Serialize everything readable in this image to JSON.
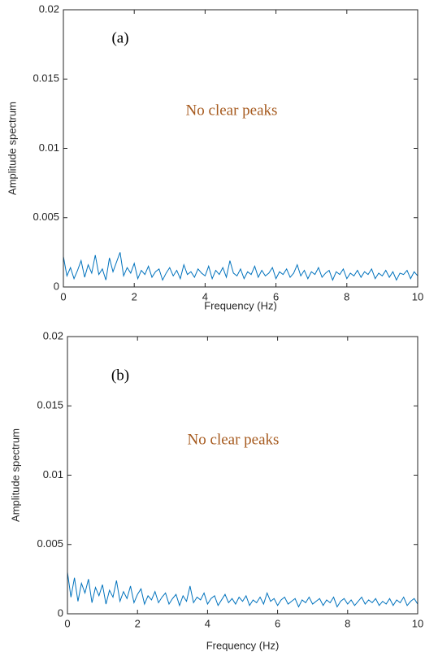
{
  "chart_data": [
    {
      "type": "line",
      "panel_label": "(a)",
      "note": "No clear peaks",
      "note_color": "#a65a1e",
      "xlabel": "Frequency (Hz)",
      "ylabel": "Amplitude spectrum",
      "xlim": [
        0,
        10
      ],
      "xticks": [
        0,
        2,
        4,
        6,
        8,
        10
      ],
      "ylim": [
        0,
        0.02
      ],
      "yticks": [
        0,
        0.005,
        0.01,
        0.015,
        0.02
      ],
      "color": "#0072bd",
      "x": [
        0,
        0.1,
        0.2,
        0.3,
        0.4,
        0.5,
        0.6,
        0.7,
        0.8,
        0.9,
        1,
        1.1,
        1.2,
        1.3,
        1.4,
        1.5,
        1.6,
        1.7,
        1.8,
        1.9,
        2,
        2.1,
        2.2,
        2.3,
        2.4,
        2.5,
        2.6,
        2.7,
        2.8,
        2.9,
        3,
        3.1,
        3.2,
        3.3,
        3.4,
        3.5,
        3.6,
        3.7,
        3.8,
        3.9,
        4,
        4.1,
        4.2,
        4.3,
        4.4,
        4.5,
        4.6,
        4.7,
        4.8,
        4.9,
        5,
        5.1,
        5.2,
        5.3,
        5.4,
        5.5,
        5.6,
        5.7,
        5.8,
        5.9,
        6,
        6.1,
        6.2,
        6.3,
        6.4,
        6.5,
        6.6,
        6.7,
        6.8,
        6.9,
        7,
        7.1,
        7.2,
        7.3,
        7.4,
        7.5,
        7.6,
        7.7,
        7.8,
        7.9,
        8,
        8.1,
        8.2,
        8.3,
        8.4,
        8.5,
        8.6,
        8.7,
        8.8,
        8.9,
        9,
        9.1,
        9.2,
        9.3,
        9.4,
        9.5,
        9.6,
        9.7,
        9.8,
        9.9,
        10
      ],
      "values": [
        0.0022,
        0.0008,
        0.0014,
        0.0006,
        0.0012,
        0.0019,
        0.0007,
        0.0016,
        0.001,
        0.0023,
        0.0009,
        0.0013,
        0.0005,
        0.0021,
        0.0011,
        0.0018,
        0.0025,
        0.0008,
        0.0014,
        0.001,
        0.0017,
        0.0006,
        0.0012,
        0.0009,
        0.0015,
        0.0007,
        0.0011,
        0.0013,
        0.0005,
        0.001,
        0.0014,
        0.0008,
        0.0012,
        0.0006,
        0.0016,
        0.0009,
        0.0011,
        0.0007,
        0.0013,
        0.001,
        0.0008,
        0.0015,
        0.0006,
        0.0012,
        0.0009,
        0.0014,
        0.0007,
        0.0019,
        0.001,
        0.0008,
        0.0013,
        0.0006,
        0.0011,
        0.0009,
        0.0015,
        0.0007,
        0.0012,
        0.0008,
        0.001,
        0.0014,
        0.0006,
        0.0011,
        0.0009,
        0.0013,
        0.0007,
        0.001,
        0.0016,
        0.0008,
        0.0012,
        0.0006,
        0.0011,
        0.0009,
        0.0014,
        0.0007,
        0.001,
        0.0012,
        0.0005,
        0.0011,
        0.0009,
        0.0013,
        0.0006,
        0.001,
        0.0008,
        0.0012,
        0.0007,
        0.0011,
        0.0009,
        0.0013,
        0.0006,
        0.001,
        0.0008,
        0.0012,
        0.0007,
        0.0011,
        0.0005,
        0.001,
        0.0009,
        0.0012,
        0.0006,
        0.0011,
        0.0008
      ]
    },
    {
      "type": "line",
      "panel_label": "(b)",
      "note": "No clear peaks",
      "note_color": "#a65a1e",
      "xlabel": "Frequency (Hz)",
      "ylabel": "Amplitude spectrum",
      "xlim": [
        0,
        10
      ],
      "xticks": [
        0,
        2,
        4,
        6,
        8,
        10
      ],
      "ylim": [
        0,
        0.02
      ],
      "yticks": [
        0,
        0.005,
        0.01,
        0.015,
        0.02
      ],
      "color": "#0072bd",
      "x": [
        0,
        0.1,
        0.2,
        0.3,
        0.4,
        0.5,
        0.6,
        0.7,
        0.8,
        0.9,
        1,
        1.1,
        1.2,
        1.3,
        1.4,
        1.5,
        1.6,
        1.7,
        1.8,
        1.9,
        2,
        2.1,
        2.2,
        2.3,
        2.4,
        2.5,
        2.6,
        2.7,
        2.8,
        2.9,
        3,
        3.1,
        3.2,
        3.3,
        3.4,
        3.5,
        3.6,
        3.7,
        3.8,
        3.9,
        4,
        4.1,
        4.2,
        4.3,
        4.4,
        4.5,
        4.6,
        4.7,
        4.8,
        4.9,
        5,
        5.1,
        5.2,
        5.3,
        5.4,
        5.5,
        5.6,
        5.7,
        5.8,
        5.9,
        6,
        6.1,
        6.2,
        6.3,
        6.4,
        6.5,
        6.6,
        6.7,
        6.8,
        6.9,
        7,
        7.1,
        7.2,
        7.3,
        7.4,
        7.5,
        7.6,
        7.7,
        7.8,
        7.9,
        8,
        8.1,
        8.2,
        8.3,
        8.4,
        8.5,
        8.6,
        8.7,
        8.8,
        8.9,
        9,
        9.1,
        9.2,
        9.3,
        9.4,
        9.5,
        9.6,
        9.7,
        9.8,
        9.9,
        10
      ],
      "values": [
        0.003,
        0.0012,
        0.0026,
        0.0009,
        0.0022,
        0.0015,
        0.0025,
        0.0008,
        0.0019,
        0.0013,
        0.0021,
        0.0007,
        0.0017,
        0.0012,
        0.0024,
        0.0009,
        0.0016,
        0.0011,
        0.002,
        0.0008,
        0.0014,
        0.0018,
        0.0007,
        0.0013,
        0.001,
        0.0016,
        0.0008,
        0.0012,
        0.0015,
        0.0007,
        0.0011,
        0.0014,
        0.0006,
        0.0013,
        0.0009,
        0.002,
        0.0008,
        0.0012,
        0.001,
        0.0015,
        0.0007,
        0.0011,
        0.0013,
        0.0006,
        0.001,
        0.0014,
        0.0008,
        0.0011,
        0.0007,
        0.0012,
        0.0009,
        0.0013,
        0.0006,
        0.001,
        0.0008,
        0.0012,
        0.0007,
        0.0015,
        0.0009,
        0.0011,
        0.0006,
        0.001,
        0.0012,
        0.0007,
        0.0009,
        0.0011,
        0.0005,
        0.001,
        0.0008,
        0.0012,
        0.0007,
        0.0009,
        0.0011,
        0.0006,
        0.001,
        0.0008,
        0.0012,
        0.0005,
        0.0009,
        0.0011,
        0.0007,
        0.001,
        0.0006,
        0.0009,
        0.0012,
        0.0007,
        0.001,
        0.0008,
        0.0011,
        0.0006,
        0.0009,
        0.0007,
        0.0011,
        0.0006,
        0.001,
        0.0008,
        0.0012,
        0.0006,
        0.0009,
        0.0011,
        0.0007
      ]
    }
  ]
}
